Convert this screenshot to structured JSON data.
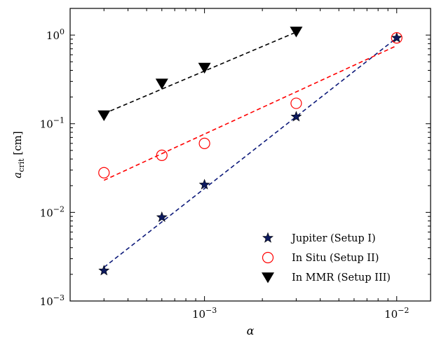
{
  "chart_data": {
    "type": "scatter",
    "xscale": "log",
    "yscale": "log",
    "xlim": [
      0.0002,
      0.015
    ],
    "ylim": [
      0.001,
      2.0
    ],
    "xlabel": "α",
    "ylabel_main": "a",
    "ylabel_sub": "crit",
    "ylabel_unit": " [cm]",
    "xticks": [
      {
        "value": 0.001,
        "base": "10",
        "exp": "−3"
      },
      {
        "value": 0.01,
        "base": "10",
        "exp": "−2"
      }
    ],
    "yticks": [
      {
        "value": 0.001,
        "base": "10",
        "exp": "−3"
      },
      {
        "value": 0.01,
        "base": "10",
        "exp": "−2"
      },
      {
        "value": 0.1,
        "base": "10",
        "exp": "−1"
      },
      {
        "value": 1.0,
        "base": "10",
        "exp": "0"
      }
    ],
    "legend_position": "bottom-right",
    "series": [
      {
        "name": "Jupiter (Setup I)",
        "marker": "star",
        "color": "#0d1a5e",
        "x": [
          0.0003,
          0.0006,
          0.001,
          0.003,
          0.01
        ],
        "y": [
          0.0022,
          0.0088,
          0.0205,
          0.12,
          0.93
        ],
        "fit_line": {
          "x": [
            0.0003,
            0.01
          ],
          "y": [
            0.0024,
            0.93
          ],
          "color": "#0d1a7a"
        }
      },
      {
        "name": "In Situ (Setup II)",
        "marker": "circle",
        "color": "#ff0000",
        "x": [
          0.0003,
          0.0006,
          0.001,
          0.003,
          0.01
        ],
        "y": [
          0.028,
          0.044,
          0.06,
          0.17,
          0.93
        ],
        "fit_line": {
          "x": [
            0.0003,
            0.01
          ],
          "y": [
            0.023,
            0.76
          ],
          "color": "#ff0000"
        }
      },
      {
        "name": "In MMR (Setup III)",
        "marker": "triangle-down",
        "color": "#000000",
        "x": [
          0.0003,
          0.0006,
          0.001,
          0.003
        ],
        "y": [
          0.125,
          0.285,
          0.43,
          1.1
        ],
        "fit_line": {
          "x": [
            0.0003,
            0.003
          ],
          "y": [
            0.13,
            1.08
          ],
          "color": "#000000"
        }
      }
    ]
  }
}
